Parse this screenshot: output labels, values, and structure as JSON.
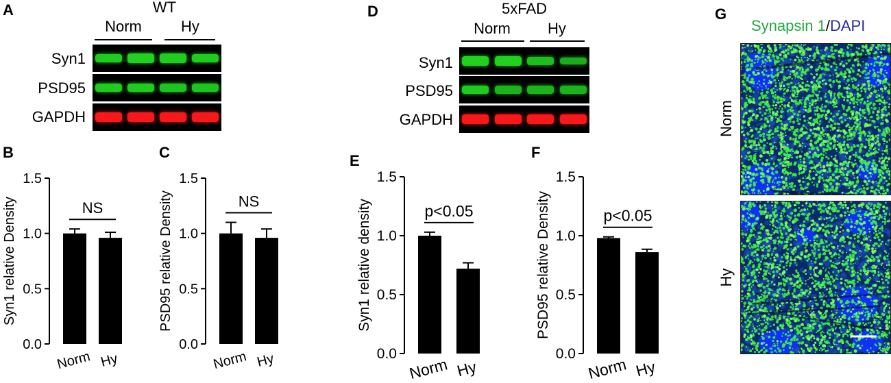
{
  "panels": {
    "A": {
      "letter": "A",
      "title": "WT",
      "groups": [
        "Norm",
        "Hy"
      ],
      "rows": [
        {
          "label": "Syn1",
          "color": "#22dd22",
          "intensities": [
            0.85,
            0.9,
            0.88,
            0.85
          ]
        },
        {
          "label": "PSD95",
          "color": "#22dd22",
          "intensities": [
            0.85,
            0.85,
            0.8,
            0.8
          ]
        },
        {
          "label": "GAPDH",
          "color": "#ff1a1a",
          "intensities": [
            0.95,
            0.95,
            0.95,
            0.95
          ]
        }
      ]
    },
    "D": {
      "letter": "D",
      "title": "5xFAD",
      "groups": [
        "Norm",
        "Hy"
      ],
      "rows": [
        {
          "label": "Syn1",
          "color": "#22dd22",
          "intensities": [
            0.9,
            0.9,
            0.75,
            0.6
          ]
        },
        {
          "label": "PSD95",
          "color": "#22dd22",
          "intensities": [
            0.85,
            0.65,
            0.65,
            0.65
          ]
        },
        {
          "label": "GAPDH",
          "color": "#ff1a1a",
          "intensities": [
            0.95,
            0.95,
            0.95,
            0.95
          ]
        }
      ]
    },
    "G": {
      "letter": "G",
      "legend_part1": "Synapsin 1",
      "legend_sep": "/",
      "legend_part2": "DAPI",
      "legend_color1": "#1faa3f",
      "legend_color2": "#2a2aa0",
      "rows": [
        "Norm",
        "Hy"
      ]
    }
  },
  "chart_data": [
    {
      "panel": "B",
      "type": "bar",
      "categories": [
        "Norm",
        "Hy"
      ],
      "values": [
        1.0,
        0.96
      ],
      "errors": [
        0.04,
        0.05
      ],
      "ylabel": "Syn1 relative Density",
      "ylim": [
        0,
        1.5
      ],
      "yticks": [
        "0.0",
        "0.5",
        "1.0",
        "1.5"
      ],
      "annotation": "NS"
    },
    {
      "panel": "C",
      "type": "bar",
      "categories": [
        "Norm",
        "Hy"
      ],
      "values": [
        1.0,
        0.96
      ],
      "errors": [
        0.1,
        0.08
      ],
      "ylabel": "PSD95 relative Density",
      "ylim": [
        0,
        1.5
      ],
      "yticks": [
        "0.0",
        "0.5",
        "1.0",
        "1.5"
      ],
      "annotation": "NS"
    },
    {
      "panel": "E",
      "type": "bar",
      "categories": [
        "Norm",
        "Hy"
      ],
      "values": [
        1.0,
        0.72
      ],
      "errors": [
        0.03,
        0.05
      ],
      "ylabel": "Syn1 relative density",
      "ylim": [
        0,
        1.5
      ],
      "yticks": [
        "0.0",
        "0.5",
        "1.0",
        "1.5"
      ],
      "annotation": "p<0.05"
    },
    {
      "panel": "F",
      "type": "bar",
      "categories": [
        "Norm",
        "Hy"
      ],
      "values": [
        0.98,
        0.86
      ],
      "errors": [
        0.01,
        0.025
      ],
      "ylabel": "PSD95 relative Density",
      "ylim": [
        0,
        1.5
      ],
      "yticks": [
        "0.0",
        "0.5",
        "1.0",
        "1.5"
      ],
      "annotation": "p<0.05"
    }
  ]
}
